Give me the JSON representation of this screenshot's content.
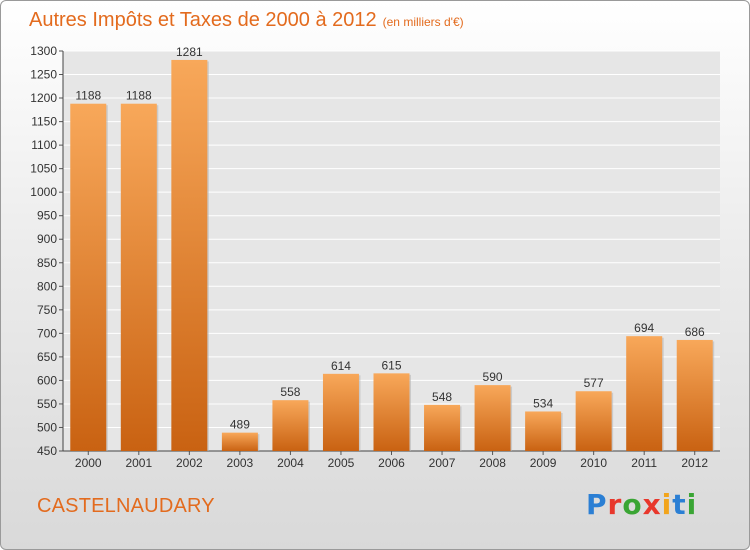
{
  "header": {
    "title": "Autres Impôts et Taxes de 2000 à 2012",
    "unit": "(en milliers d'€)"
  },
  "footer": {
    "city": "CASTELNAUDARY",
    "logo_letters": [
      "P",
      "r",
      "o",
      "x",
      "i",
      "t",
      "i"
    ],
    "logo_colors": [
      "#2b7fd4",
      "#e8372c",
      "#3aa534",
      "#e8372c",
      "#f2a51c",
      "#2b7fd4",
      "#3aa534"
    ]
  },
  "colors": {
    "bar_light": "#f8a85a",
    "bar_dark": "#c96212",
    "accent": "#e36b1e"
  },
  "chart_data": {
    "type": "bar",
    "categories": [
      "2000",
      "2001",
      "2002",
      "2003",
      "2004",
      "2005",
      "2006",
      "2007",
      "2008",
      "2009",
      "2010",
      "2011",
      "2012"
    ],
    "values": [
      1188,
      1188,
      1281,
      489,
      558,
      614,
      615,
      548,
      590,
      534,
      577,
      694,
      686
    ],
    "ylim": [
      450,
      1300
    ],
    "yticks": [
      450,
      500,
      550,
      600,
      650,
      700,
      750,
      800,
      850,
      900,
      950,
      1000,
      1050,
      1100,
      1150,
      1200,
      1250,
      1300
    ],
    "grid": true
  }
}
